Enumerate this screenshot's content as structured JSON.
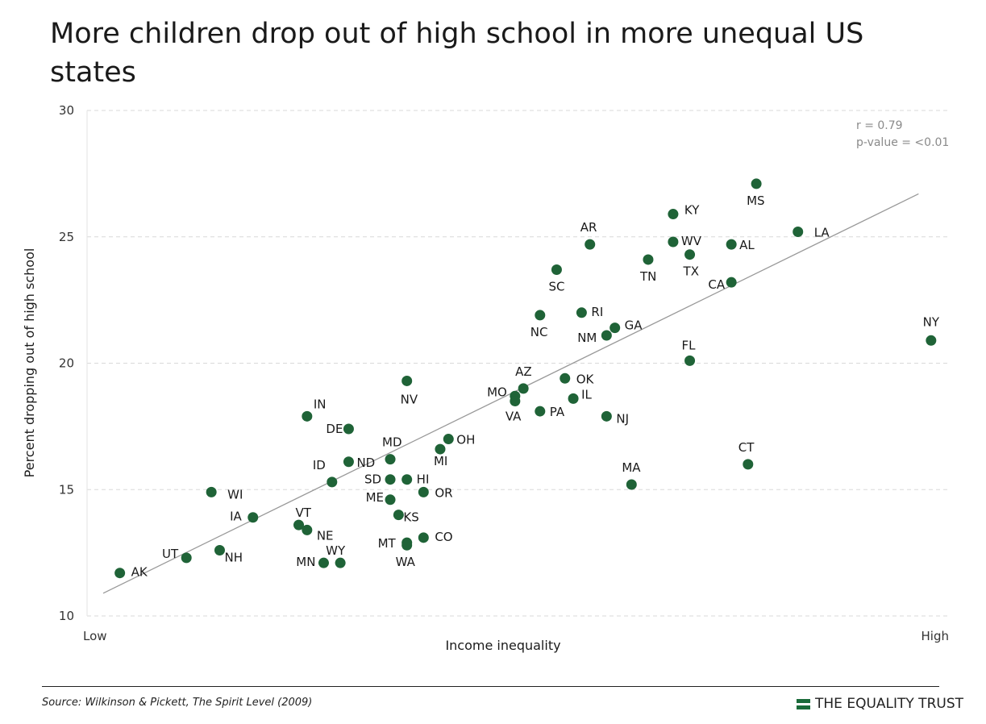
{
  "chart_data": {
    "type": "scatter",
    "title": "More children drop out of high school in more unequal US states",
    "xlabel": "Income inequality",
    "ylabel": "Percent dropping out of high school",
    "x_tick_labels": [
      "Low",
      "High"
    ],
    "ylim": [
      10,
      30
    ],
    "y_ticks": [
      10,
      15,
      20,
      25,
      30
    ],
    "grid": "horizontal dashed",
    "point_color": "#1f6337",
    "trendline_color": "#999999",
    "trendline": {
      "y_at_low": 10.9,
      "y_at_high": 26.7
    },
    "points": [
      {
        "label": "AK",
        "x": 0.02,
        "y": 11.7
      },
      {
        "label": "UT",
        "x": 0.1,
        "y": 12.3
      },
      {
        "label": "WI",
        "x": 0.13,
        "y": 14.9
      },
      {
        "label": "NH",
        "x": 0.14,
        "y": 12.6
      },
      {
        "label": "IA",
        "x": 0.18,
        "y": 13.9
      },
      {
        "label": "VT",
        "x": 0.235,
        "y": 13.6
      },
      {
        "label": "NE",
        "x": 0.245,
        "y": 13.4
      },
      {
        "label": "IN",
        "x": 0.245,
        "y": 17.9
      },
      {
        "label": "MN",
        "x": 0.265,
        "y": 12.1
      },
      {
        "label": "ID",
        "x": 0.275,
        "y": 15.3
      },
      {
        "label": "WY",
        "x": 0.285,
        "y": 12.1
      },
      {
        "label": "ND",
        "x": 0.295,
        "y": 16.1
      },
      {
        "label": "DE",
        "x": 0.295,
        "y": 17.4
      },
      {
        "label": "MD",
        "x": 0.345,
        "y": 16.2
      },
      {
        "label": "SD",
        "x": 0.345,
        "y": 15.4
      },
      {
        "label": "ME",
        "x": 0.345,
        "y": 14.6
      },
      {
        "label": "KS",
        "x": 0.355,
        "y": 14.0
      },
      {
        "label": "HI",
        "x": 0.365,
        "y": 15.4
      },
      {
        "label": "MT",
        "x": 0.365,
        "y": 12.9
      },
      {
        "label": "WA",
        "x": 0.365,
        "y": 12.8
      },
      {
        "label": "NV",
        "x": 0.365,
        "y": 19.3
      },
      {
        "label": "OR",
        "x": 0.385,
        "y": 14.9
      },
      {
        "label": "CO",
        "x": 0.385,
        "y": 13.1
      },
      {
        "label": "MI",
        "x": 0.405,
        "y": 16.6
      },
      {
        "label": "OH",
        "x": 0.415,
        "y": 17.0
      },
      {
        "label": "MO",
        "x": 0.495,
        "y": 18.7
      },
      {
        "label": "VA",
        "x": 0.495,
        "y": 18.5
      },
      {
        "label": "AZ",
        "x": 0.505,
        "y": 19.0
      },
      {
        "label": "NC",
        "x": 0.525,
        "y": 21.9
      },
      {
        "label": "PA",
        "x": 0.525,
        "y": 18.1
      },
      {
        "label": "SC",
        "x": 0.545,
        "y": 23.7
      },
      {
        "label": "OK",
        "x": 0.555,
        "y": 19.4
      },
      {
        "label": "IL",
        "x": 0.565,
        "y": 18.6
      },
      {
        "label": "RI",
        "x": 0.575,
        "y": 22.0
      },
      {
        "label": "AR",
        "x": 0.585,
        "y": 24.7
      },
      {
        "label": "NM",
        "x": 0.605,
        "y": 21.1
      },
      {
        "label": "NJ",
        "x": 0.605,
        "y": 17.9
      },
      {
        "label": "GA",
        "x": 0.615,
        "y": 21.4
      },
      {
        "label": "MA",
        "x": 0.635,
        "y": 15.2
      },
      {
        "label": "TN",
        "x": 0.655,
        "y": 24.1
      },
      {
        "label": "KY",
        "x": 0.685,
        "y": 25.9
      },
      {
        "label": "WV",
        "x": 0.685,
        "y": 24.8
      },
      {
        "label": "TX",
        "x": 0.705,
        "y": 24.3
      },
      {
        "label": "FL",
        "x": 0.705,
        "y": 20.1
      },
      {
        "label": "AL",
        "x": 0.755,
        "y": 24.7
      },
      {
        "label": "CA",
        "x": 0.755,
        "y": 23.2
      },
      {
        "label": "CT",
        "x": 0.775,
        "y": 16.0
      },
      {
        "label": "MS",
        "x": 0.785,
        "y": 27.1
      },
      {
        "label": "LA",
        "x": 0.835,
        "y": 25.2
      },
      {
        "label": "NY",
        "x": 0.995,
        "y": 20.9
      }
    ]
  },
  "stats": {
    "r": "r = 0.79",
    "p": "p-value = <0.01"
  },
  "footer": {
    "source": "Source: Wilkinson & Pickett, The Spirit Level (2009)",
    "brand": "THE EQUALITY TRUST"
  }
}
